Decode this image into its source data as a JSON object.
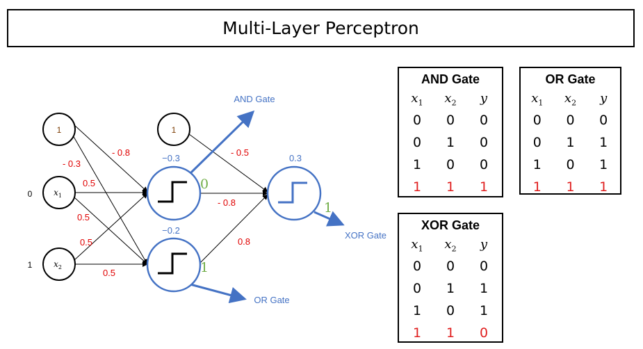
{
  "title": "Multi-Layer Perceptron",
  "colors": {
    "accent": "#4472c4",
    "weight": "#e00000",
    "output": "#70ad47"
  },
  "network": {
    "inputs": {
      "bias": "1",
      "x1": "x",
      "x1_sub": "1",
      "x2": "x",
      "x2_sub": "2",
      "x1_value": "0",
      "x2_value": "1"
    },
    "hidden_bias": "1",
    "weights_input": {
      "bias_h1": "- 0.8",
      "bias_h2": "- 0.3",
      "x1_h1": "0.5",
      "x1_h2": "0.5",
      "x2_h1": "0.5",
      "x2_h2": "0.5"
    },
    "weights_hidden": {
      "bias_out": "- 0.5",
      "h1_out": "- 0.8",
      "h2_out": "0.8"
    },
    "thresholds": {
      "h1": "−0.3",
      "h2": "−0.2",
      "out": "0.3"
    },
    "outputs": {
      "h1": "0",
      "h2": "1",
      "out": "1"
    },
    "labels": {
      "h1": "AND Gate",
      "h2": "OR Gate",
      "out": "XOR Gate"
    }
  },
  "tables": [
    {
      "title": "AND Gate",
      "headers": [
        "x",
        "x",
        "y"
      ],
      "subs": [
        "1",
        "2",
        ""
      ],
      "rows": [
        [
          "0",
          "0",
          "0"
        ],
        [
          "0",
          "1",
          "0"
        ],
        [
          "1",
          "0",
          "0"
        ],
        [
          "1",
          "1",
          "1"
        ]
      ]
    },
    {
      "title": "OR Gate",
      "headers": [
        "x",
        "x",
        "y"
      ],
      "subs": [
        "1",
        "2",
        ""
      ],
      "rows": [
        [
          "0",
          "0",
          "0"
        ],
        [
          "0",
          "1",
          "1"
        ],
        [
          "1",
          "0",
          "1"
        ],
        [
          "1",
          "1",
          "1"
        ]
      ]
    },
    {
      "title": "XOR Gate",
      "headers": [
        "x",
        "x",
        "y"
      ],
      "subs": [
        "1",
        "2",
        ""
      ],
      "rows": [
        [
          "0",
          "0",
          "0"
        ],
        [
          "0",
          "1",
          "1"
        ],
        [
          "1",
          "0",
          "1"
        ],
        [
          "1",
          "1",
          "0"
        ]
      ]
    }
  ]
}
